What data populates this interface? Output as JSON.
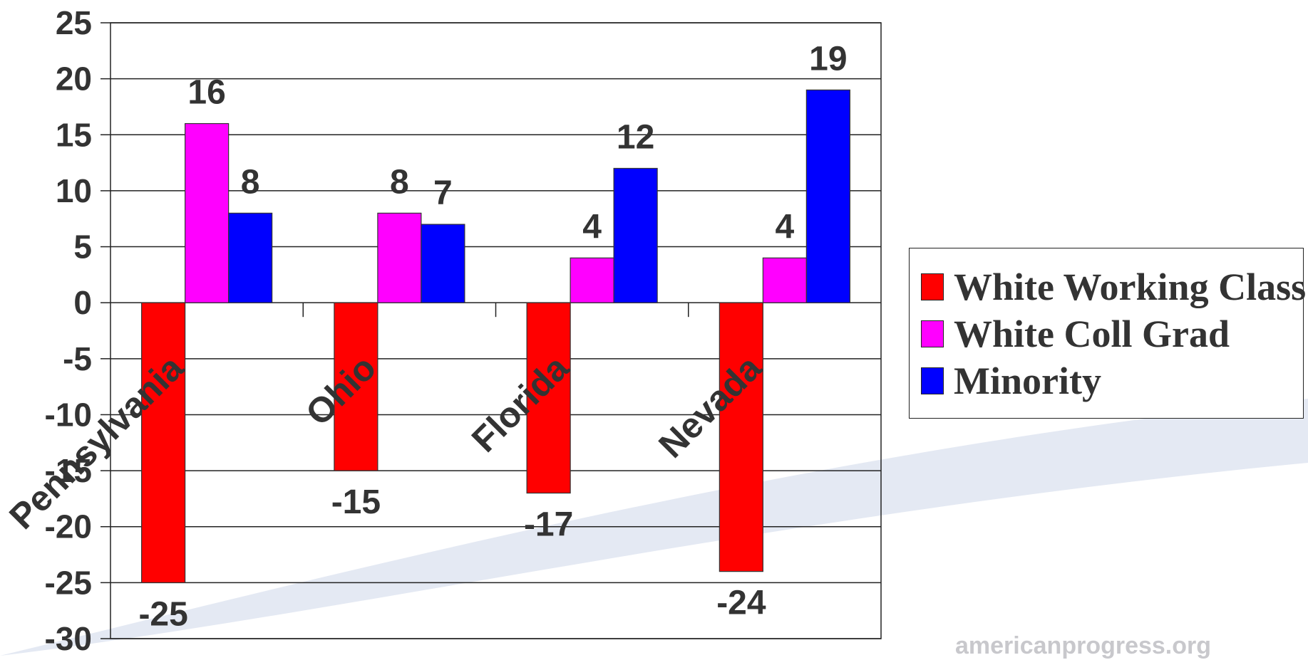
{
  "chart_data": {
    "type": "bar",
    "categories": [
      "Pennsylvania",
      "Ohio",
      "Florida",
      "Nevada"
    ],
    "series": [
      {
        "name": "White Working Class",
        "color": "#ff0000",
        "values": [
          -25,
          -15,
          -17,
          -24
        ]
      },
      {
        "name": "White Coll Grad",
        "color": "#ff00ff",
        "values": [
          16,
          8,
          4,
          4
        ]
      },
      {
        "name": "Minority",
        "color": "#0000ff",
        "values": [
          8,
          7,
          12,
          19
        ]
      }
    ],
    "y_ticks": [
      "25",
      "20",
      "15",
      "10",
      "5",
      "0",
      "-5",
      "-10",
      "-15",
      "-20",
      "-25",
      "-30"
    ],
    "ylim": [
      -30,
      25
    ],
    "grid": true,
    "legend_position": "right",
    "title": "",
    "xlabel": "",
    "ylabel": ""
  },
  "footer": "americanprogress.org"
}
